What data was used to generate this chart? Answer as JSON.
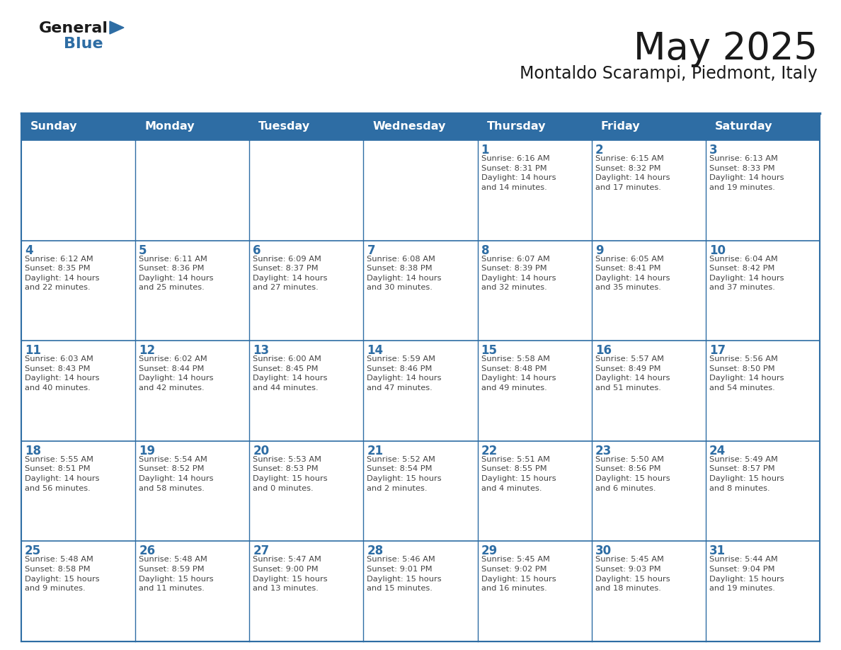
{
  "title": "May 2025",
  "subtitle": "Montaldo Scarampi, Piedmont, Italy",
  "days_of_week": [
    "Sunday",
    "Monday",
    "Tuesday",
    "Wednesday",
    "Thursday",
    "Friday",
    "Saturday"
  ],
  "header_bg": "#2E6DA4",
  "header_text": "#FFFFFF",
  "cell_bg": "#FFFFFF",
  "day_number_color": "#2E6DA4",
  "text_color": "#444444",
  "border_color": "#2E6DA4",
  "weeks": [
    [
      {
        "day": null,
        "info": null
      },
      {
        "day": null,
        "info": null
      },
      {
        "day": null,
        "info": null
      },
      {
        "day": null,
        "info": null
      },
      {
        "day": 1,
        "info": "Sunrise: 6:16 AM\nSunset: 8:31 PM\nDaylight: 14 hours\nand 14 minutes."
      },
      {
        "day": 2,
        "info": "Sunrise: 6:15 AM\nSunset: 8:32 PM\nDaylight: 14 hours\nand 17 minutes."
      },
      {
        "day": 3,
        "info": "Sunrise: 6:13 AM\nSunset: 8:33 PM\nDaylight: 14 hours\nand 19 minutes."
      }
    ],
    [
      {
        "day": 4,
        "info": "Sunrise: 6:12 AM\nSunset: 8:35 PM\nDaylight: 14 hours\nand 22 minutes."
      },
      {
        "day": 5,
        "info": "Sunrise: 6:11 AM\nSunset: 8:36 PM\nDaylight: 14 hours\nand 25 minutes."
      },
      {
        "day": 6,
        "info": "Sunrise: 6:09 AM\nSunset: 8:37 PM\nDaylight: 14 hours\nand 27 minutes."
      },
      {
        "day": 7,
        "info": "Sunrise: 6:08 AM\nSunset: 8:38 PM\nDaylight: 14 hours\nand 30 minutes."
      },
      {
        "day": 8,
        "info": "Sunrise: 6:07 AM\nSunset: 8:39 PM\nDaylight: 14 hours\nand 32 minutes."
      },
      {
        "day": 9,
        "info": "Sunrise: 6:05 AM\nSunset: 8:41 PM\nDaylight: 14 hours\nand 35 minutes."
      },
      {
        "day": 10,
        "info": "Sunrise: 6:04 AM\nSunset: 8:42 PM\nDaylight: 14 hours\nand 37 minutes."
      }
    ],
    [
      {
        "day": 11,
        "info": "Sunrise: 6:03 AM\nSunset: 8:43 PM\nDaylight: 14 hours\nand 40 minutes."
      },
      {
        "day": 12,
        "info": "Sunrise: 6:02 AM\nSunset: 8:44 PM\nDaylight: 14 hours\nand 42 minutes."
      },
      {
        "day": 13,
        "info": "Sunrise: 6:00 AM\nSunset: 8:45 PM\nDaylight: 14 hours\nand 44 minutes."
      },
      {
        "day": 14,
        "info": "Sunrise: 5:59 AM\nSunset: 8:46 PM\nDaylight: 14 hours\nand 47 minutes."
      },
      {
        "day": 15,
        "info": "Sunrise: 5:58 AM\nSunset: 8:48 PM\nDaylight: 14 hours\nand 49 minutes."
      },
      {
        "day": 16,
        "info": "Sunrise: 5:57 AM\nSunset: 8:49 PM\nDaylight: 14 hours\nand 51 minutes."
      },
      {
        "day": 17,
        "info": "Sunrise: 5:56 AM\nSunset: 8:50 PM\nDaylight: 14 hours\nand 54 minutes."
      }
    ],
    [
      {
        "day": 18,
        "info": "Sunrise: 5:55 AM\nSunset: 8:51 PM\nDaylight: 14 hours\nand 56 minutes."
      },
      {
        "day": 19,
        "info": "Sunrise: 5:54 AM\nSunset: 8:52 PM\nDaylight: 14 hours\nand 58 minutes."
      },
      {
        "day": 20,
        "info": "Sunrise: 5:53 AM\nSunset: 8:53 PM\nDaylight: 15 hours\nand 0 minutes."
      },
      {
        "day": 21,
        "info": "Sunrise: 5:52 AM\nSunset: 8:54 PM\nDaylight: 15 hours\nand 2 minutes."
      },
      {
        "day": 22,
        "info": "Sunrise: 5:51 AM\nSunset: 8:55 PM\nDaylight: 15 hours\nand 4 minutes."
      },
      {
        "day": 23,
        "info": "Sunrise: 5:50 AM\nSunset: 8:56 PM\nDaylight: 15 hours\nand 6 minutes."
      },
      {
        "day": 24,
        "info": "Sunrise: 5:49 AM\nSunset: 8:57 PM\nDaylight: 15 hours\nand 8 minutes."
      }
    ],
    [
      {
        "day": 25,
        "info": "Sunrise: 5:48 AM\nSunset: 8:58 PM\nDaylight: 15 hours\nand 9 minutes."
      },
      {
        "day": 26,
        "info": "Sunrise: 5:48 AM\nSunset: 8:59 PM\nDaylight: 15 hours\nand 11 minutes."
      },
      {
        "day": 27,
        "info": "Sunrise: 5:47 AM\nSunset: 9:00 PM\nDaylight: 15 hours\nand 13 minutes."
      },
      {
        "day": 28,
        "info": "Sunrise: 5:46 AM\nSunset: 9:01 PM\nDaylight: 15 hours\nand 15 minutes."
      },
      {
        "day": 29,
        "info": "Sunrise: 5:45 AM\nSunset: 9:02 PM\nDaylight: 15 hours\nand 16 minutes."
      },
      {
        "day": 30,
        "info": "Sunrise: 5:45 AM\nSunset: 9:03 PM\nDaylight: 15 hours\nand 18 minutes."
      },
      {
        "day": 31,
        "info": "Sunrise: 5:44 AM\nSunset: 9:04 PM\nDaylight: 15 hours\nand 19 minutes."
      }
    ]
  ]
}
